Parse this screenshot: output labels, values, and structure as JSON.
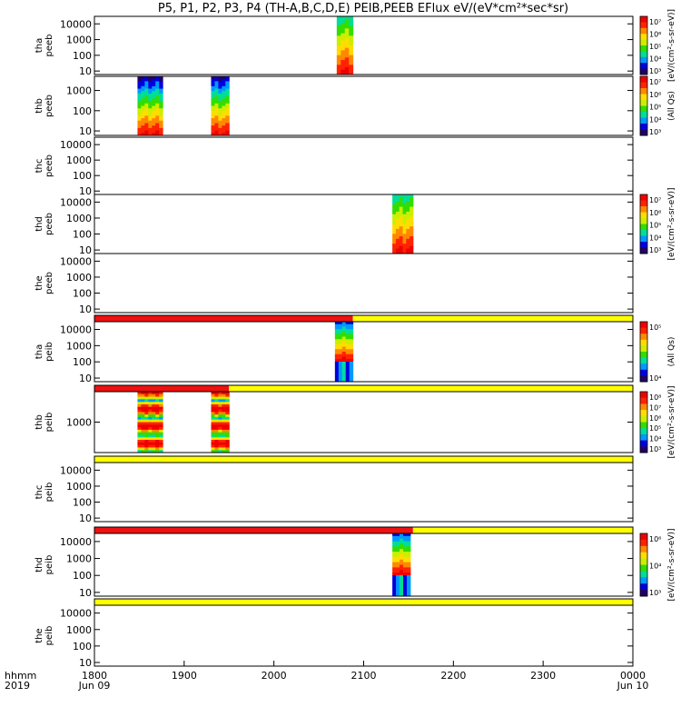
{
  "title": "P5, P1, P2, P3, P4 (TH-A,B,C,D,E) PEIB,PEEB EFlux eV/(eV*cm²*sec*sr)",
  "xaxis": {
    "row_label": "hhmm",
    "year_label": "2019",
    "ticks": [
      "1800",
      "1900",
      "2000",
      "2100",
      "2200",
      "2300",
      "0000"
    ],
    "date_labels": [
      {
        "at": 0,
        "text": "Jun 09"
      },
      {
        "at": 6,
        "text": "Jun 10"
      }
    ]
  },
  "colors": {
    "bar_red": "#ee1111",
    "bar_yellow": "#ffff00",
    "spectrogram_scale": [
      "#220066",
      "#0000dd",
      "#0099ff",
      "#00dd99",
      "#33dd00",
      "#ccee00",
      "#ffdd00",
      "#ff8800",
      "#ff2200",
      "#ee0000"
    ]
  },
  "chart_data": [
    {
      "type": "heatmap",
      "name": "tha_peeb",
      "ylabel": [
        "tha",
        "peeb"
      ],
      "yscale": "log",
      "ylim": [
        6,
        30000
      ],
      "yticks": [
        "10",
        "100",
        "1000",
        "10000"
      ],
      "xrange_hhmm": [
        "1800",
        "0000"
      ],
      "blocks": [
        {
          "x_start": "2070",
          "x_end": "2088",
          "shade": "top_green"
        }
      ],
      "colorbar": {
        "ticks": [
          "10⁷",
          "10⁶",
          "10⁵",
          "10⁴",
          "10³"
        ],
        "unit": "[eV/(cm²-s-sr-eV)]"
      }
    },
    {
      "type": "heatmap",
      "name": "thb_peeb",
      "ylabel": [
        "thb",
        "peeb"
      ],
      "yscale": "log",
      "ylim": [
        6,
        5000
      ],
      "yticks": [
        "10",
        "100",
        "1000"
      ],
      "blocks": [
        {
          "x_start": "1848",
          "x_end": "1876",
          "shade": "top_blue"
        },
        {
          "x_start": "1930",
          "x_end": "1950",
          "shade": "top_blue"
        }
      ],
      "colorbar": {
        "ticks": [
          "10⁷",
          "10⁶",
          "10⁵",
          "10⁴",
          "10³"
        ],
        "unit": "(All Qs)"
      }
    },
    {
      "type": "heatmap",
      "name": "thc_peeb",
      "ylabel": [
        "thc",
        "peeb"
      ],
      "yscale": "log",
      "ylim": [
        6,
        30000
      ],
      "yticks": [
        "10",
        "100",
        "1000",
        "10000"
      ],
      "blocks": [],
      "colorbar": null
    },
    {
      "type": "heatmap",
      "name": "thd_peeb",
      "ylabel": [
        "thd",
        "peeb"
      ],
      "yscale": "log",
      "ylim": [
        6,
        30000
      ],
      "yticks": [
        "10",
        "100",
        "1000",
        "10000"
      ],
      "blocks": [
        {
          "x_start": "2132",
          "x_end": "2155",
          "shade": "top_green"
        }
      ],
      "colorbar": {
        "ticks": [
          "10⁷",
          "10⁶",
          "10⁵",
          "10⁴",
          "10³"
        ],
        "unit": "[eV/(cm²-s-sr-eV)]"
      }
    },
    {
      "type": "heatmap",
      "name": "the_peeb",
      "ylabel": [
        "the",
        "peeb"
      ],
      "yscale": "log",
      "ylim": [
        6,
        30000
      ],
      "yticks": [
        "10",
        "100",
        "1000",
        "10000"
      ],
      "blocks": [],
      "colorbar": null
    },
    {
      "type": "status_bar",
      "name": "tha_peib_bar",
      "segments": [
        {
          "x_start": "1800",
          "x_end": "2088",
          "color": "red"
        },
        {
          "x_start": "2088",
          "x_end": "0000",
          "color": "yellow"
        }
      ]
    },
    {
      "type": "heatmap",
      "name": "tha_peib",
      "ylabel": [
        "tha",
        "peib"
      ],
      "yscale": "log",
      "ylim": [
        6,
        30000
      ],
      "yticks": [
        "10",
        "100",
        "1000",
        "10000"
      ],
      "blocks": [
        {
          "x_start": "2068",
          "x_end": "2088",
          "shade": "ion"
        }
      ],
      "colorbar": {
        "ticks": [
          "10⁵",
          "10⁴"
        ],
        "unit": "(All Qs)"
      }
    },
    {
      "type": "status_bar",
      "name": "thb_peib_bar",
      "segments": [
        {
          "x_start": "1800",
          "x_end": "1950",
          "color": "red"
        },
        {
          "x_start": "1950",
          "x_end": "0000",
          "color": "yellow"
        }
      ]
    },
    {
      "type": "heatmap",
      "name": "thb_peib",
      "ylabel": [
        "thb",
        "peib"
      ],
      "yscale": "log",
      "ylim": [
        200,
        5000
      ],
      "yticks": [
        "1000"
      ],
      "blocks": [
        {
          "x_start": "1848",
          "x_end": "1876",
          "shade": "ion_band"
        },
        {
          "x_start": "1930",
          "x_end": "1950",
          "shade": "ion_band"
        }
      ],
      "colorbar": {
        "ticks": [
          "10⁸",
          "10⁷",
          "10⁶",
          "10⁵",
          "10⁴",
          "10³"
        ],
        "unit": "[eV/(cm²-s-sr-eV)]"
      }
    },
    {
      "type": "status_bar",
      "name": "thc_peib_bar",
      "segments": [
        {
          "x_start": "1800",
          "x_end": "0000",
          "color": "yellow"
        }
      ]
    },
    {
      "type": "heatmap",
      "name": "thc_peib",
      "ylabel": [
        "thc",
        "peib"
      ],
      "yscale": "log",
      "ylim": [
        6,
        30000
      ],
      "yticks": [
        "10",
        "100",
        "1000",
        "10000"
      ],
      "blocks": [],
      "colorbar": null
    },
    {
      "type": "status_bar",
      "name": "thd_peib_bar",
      "segments": [
        {
          "x_start": "1800",
          "x_end": "2155",
          "color": "red"
        },
        {
          "x_start": "2155",
          "x_end": "0000",
          "color": "yellow"
        }
      ]
    },
    {
      "type": "heatmap",
      "name": "thd_peib",
      "ylabel": [
        "thd",
        "peib"
      ],
      "yscale": "log",
      "ylim": [
        6,
        30000
      ],
      "yticks": [
        "10",
        "100",
        "1000",
        "10000"
      ],
      "blocks": [
        {
          "x_start": "2132",
          "x_end": "2152",
          "shade": "ion"
        }
      ],
      "colorbar": {
        "ticks": [
          "10⁶",
          "10⁴",
          "10³"
        ],
        "unit": "[eV/(cm²-s-sr-eV)]"
      }
    },
    {
      "type": "status_bar",
      "name": "the_peib_bar",
      "segments": [
        {
          "x_start": "1800",
          "x_end": "0000",
          "color": "yellow"
        }
      ]
    },
    {
      "type": "heatmap",
      "name": "the_peib",
      "ylabel": [
        "the",
        "peib"
      ],
      "yscale": "log",
      "ylim": [
        6,
        30000
      ],
      "yticks": [
        "10",
        "100",
        "1000",
        "10000"
      ],
      "blocks": [],
      "colorbar": null
    }
  ]
}
